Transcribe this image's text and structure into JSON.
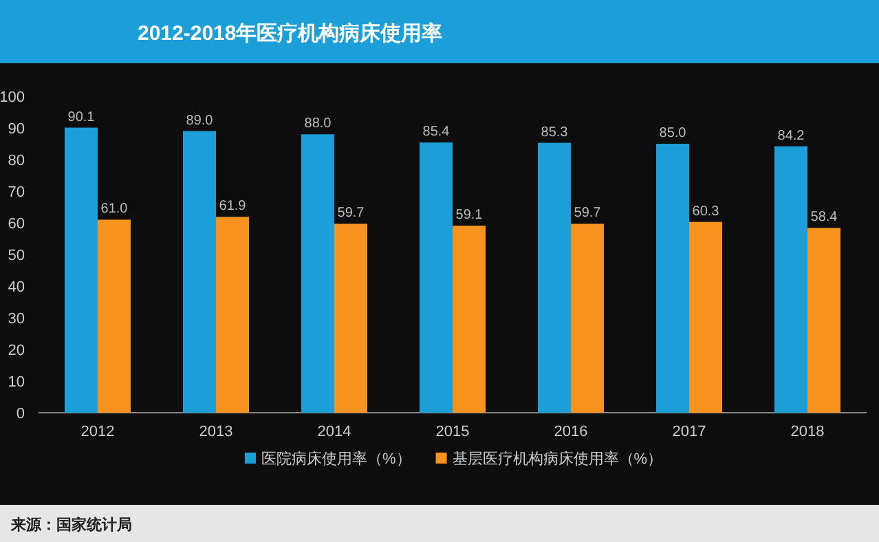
{
  "chart_data": {
    "type": "bar",
    "title": "2012-2018年医疗机构病床使用率",
    "categories": [
      "2012",
      "2013",
      "2014",
      "2015",
      "2016",
      "2017",
      "2018"
    ],
    "series": [
      {
        "name": "医院病床使用率（%）",
        "color": "#1c9fd8",
        "values": [
          90.1,
          89.0,
          88.0,
          85.4,
          85.3,
          85.0,
          84.2
        ],
        "value_labels": [
          "90.1",
          "89.0",
          "88.0",
          "85.4",
          "85.3",
          "85.0",
          "84.2"
        ]
      },
      {
        "name": "基层医疗机构病床使用率（%）",
        "color": "#f7931e",
        "values": [
          61.0,
          61.9,
          59.7,
          59.1,
          59.7,
          60.3,
          58.4
        ],
        "value_labels": [
          "61.0",
          "61.9",
          "59.7",
          "59.1",
          "59.7",
          "60.3",
          "58.4"
        ]
      }
    ],
    "ylim": [
      0,
      100
    ],
    "yticks": [
      0,
      10,
      20,
      30,
      40,
      50,
      60,
      70,
      80,
      90,
      100
    ],
    "legend": "bottom",
    "annotations": [
      "来源：国家统计局"
    ]
  }
}
